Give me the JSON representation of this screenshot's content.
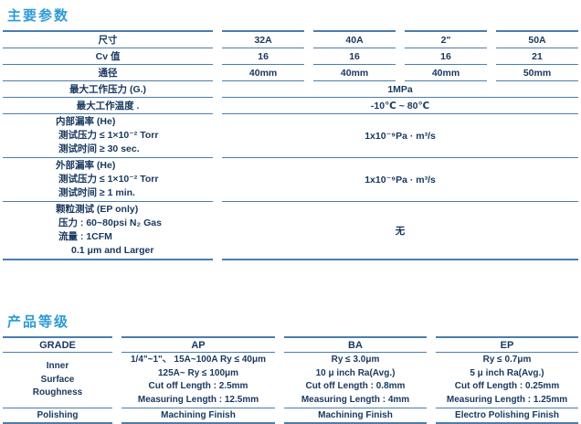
{
  "page": {
    "section1_title": "主要参数",
    "section2_title": "产品等级"
  },
  "colors": {
    "title_accent": "#2E9BD6",
    "table_text": "#17375E",
    "table_line": "#4A7DAE"
  },
  "parameters_table": {
    "size_row": {
      "label": "尺寸",
      "values": [
        "32A",
        "40A",
        "2\"",
        "50A"
      ]
    },
    "cv_row": {
      "label": "Cv 值",
      "values": [
        "16",
        "16",
        "16",
        "21"
      ]
    },
    "bore_row": {
      "label": "通径",
      "values": [
        "40mm",
        "40mm",
        "40mm",
        "50mm"
      ]
    },
    "pressure_row": {
      "label": "最大工作压力 (G.)",
      "value": "1MPa"
    },
    "temperature_row": {
      "label": "最大工作温度 .",
      "value": "-10℃ ~ 80℃"
    },
    "internal_leak_row": {
      "label_lines": [
        "内部漏率 (He)",
        "测试压力 ≤ 1×10⁻² Torr",
        "测试时间 ≥ 30 sec."
      ],
      "value": "1x10⁻⁹Pa · m³/s"
    },
    "external_leak_row": {
      "label_lines": [
        "外部漏率 (He)",
        "测试压力 ≤ 1×10⁻² Torr",
        "测试时间 ≥ 1 min."
      ],
      "value": "1x10⁻⁹Pa · m³/s"
    },
    "particle_test_row": {
      "label_lines": [
        "颗粒测试 (EP only)",
        "压力 : 60~80psi N₂ Gas",
        "流量 : 1CFM",
        "0.1 μm and Larger"
      ],
      "value": "无"
    }
  },
  "grade_table": {
    "headers": [
      "GRADE",
      "AP",
      "BA",
      "EP"
    ],
    "roughness_row": {
      "label_lines": [
        "Inner",
        "Surface",
        "Roughness"
      ],
      "ap_lines": [
        "1/4\"~1\"、 15A~100A Ry ≤ 40μm",
        "125A~ Ry ≤ 100μm",
        "Cut off Length : 2.5mm",
        "Measuring Length : 12.5mm"
      ],
      "ba_lines": [
        "Ry ≤ 3.0μm",
        "10 μ inch Ra(Avg.)",
        "Cut off Length : 0.8mm",
        "Measuring Length : 4mm"
      ],
      "ep_lines": [
        "Ry ≤ 0.7μm",
        "5 μ inch Ra(Avg.)",
        "Cut off Length : 0.25mm",
        "Measuring Length : 1.25mm"
      ]
    },
    "polishing_row": {
      "label": "Polishing",
      "values": [
        "Machining Finish",
        "Machining Finish",
        "Electro Polishing Finish"
      ]
    }
  }
}
